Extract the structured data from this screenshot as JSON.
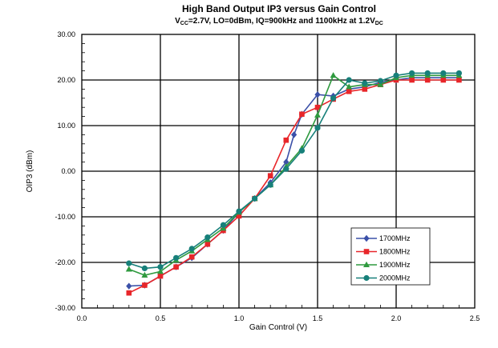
{
  "chart_data": {
    "type": "line",
    "title": "High Band Output IP3 versus Gain Control",
    "subtitle": {
      "v": "V",
      "v_sub": "CC",
      "mid": "=2.7V, LO=0dBm, IQ=900kHz and 1100kHz at 1.2V",
      "end_sub": "DC"
    },
    "xlabel": "Gain Control (V)",
    "ylabel": "OIP3 (dBm)",
    "xlim": [
      0.0,
      2.5
    ],
    "ylim": [
      -30,
      30
    ],
    "x_ticks": [
      "0.0",
      "0.5",
      "1.0",
      "1.5",
      "2.0",
      "2.5"
    ],
    "y_ticks": [
      "-30.00",
      "-20.00",
      "-10.00",
      "0.00",
      "10.00",
      "20.00",
      "30.00"
    ],
    "grid": true,
    "legend_position": "bottom-right",
    "series": [
      {
        "name": "1700MHz",
        "color": "#3b50a8",
        "marker": "diamond",
        "x": [
          0.3,
          0.4,
          0.5,
          0.6,
          0.7,
          0.8,
          0.9,
          1.0,
          1.1,
          1.2,
          1.3,
          1.35,
          1.4,
          1.5,
          1.6,
          1.7,
          1.8,
          1.9,
          2.0,
          2.1,
          2.2,
          2.3,
          2.4
        ],
        "y": [
          -25.2,
          -25.0,
          -23.0,
          -21.0,
          -19.0,
          -16.0,
          -13.0,
          -9.0,
          -6.0,
          -2.5,
          2.0,
          8.0,
          12.5,
          16.8,
          16.5,
          18.0,
          18.5,
          19.5,
          20.0,
          20.5,
          20.5,
          20.5,
          20.5
        ]
      },
      {
        "name": "1800MHz",
        "color": "#e8262a",
        "marker": "square",
        "x": [
          0.3,
          0.4,
          0.5,
          0.6,
          0.7,
          0.8,
          0.9,
          1.0,
          1.1,
          1.2,
          1.3,
          1.4,
          1.5,
          1.6,
          1.7,
          1.8,
          1.9,
          2.0,
          2.1,
          2.2,
          2.3,
          2.4
        ],
        "y": [
          -26.7,
          -25.0,
          -23.0,
          -21.0,
          -18.8,
          -16.0,
          -13.0,
          -9.8,
          -6.0,
          -1.0,
          6.8,
          12.5,
          14.0,
          15.8,
          17.5,
          18.0,
          19.0,
          20.0,
          20.0,
          20.0,
          20.0,
          20.0
        ]
      },
      {
        "name": "1900MHz",
        "color": "#2f9a3f",
        "marker": "triangle",
        "x": [
          0.3,
          0.4,
          0.5,
          0.6,
          0.7,
          0.8,
          0.9,
          1.0,
          1.1,
          1.2,
          1.3,
          1.4,
          1.5,
          1.6,
          1.7,
          1.8,
          1.9,
          2.0,
          2.1,
          2.2,
          2.3,
          2.4
        ],
        "y": [
          -21.5,
          -22.8,
          -22.0,
          -19.5,
          -17.5,
          -15.0,
          -12.5,
          -9.0,
          -6.0,
          -3.0,
          1.0,
          5.0,
          12.3,
          21.0,
          18.5,
          19.0,
          19.0,
          20.5,
          21.0,
          21.0,
          21.0,
          21.0
        ]
      },
      {
        "name": "2000MHz",
        "color": "#17807a",
        "marker": "circle",
        "x": [
          0.3,
          0.4,
          0.5,
          0.6,
          0.7,
          0.8,
          0.9,
          1.0,
          1.1,
          1.2,
          1.3,
          1.4,
          1.5,
          1.6,
          1.7,
          1.8,
          1.9,
          2.0,
          2.1,
          2.2,
          2.3,
          2.4
        ],
        "y": [
          -20.2,
          -21.3,
          -21.0,
          -19.0,
          -17.0,
          -14.5,
          -11.8,
          -8.8,
          -6.0,
          -3.0,
          0.5,
          4.5,
          9.5,
          16.0,
          20.0,
          19.3,
          19.8,
          21.0,
          21.5,
          21.5,
          21.5,
          21.5
        ]
      }
    ]
  }
}
